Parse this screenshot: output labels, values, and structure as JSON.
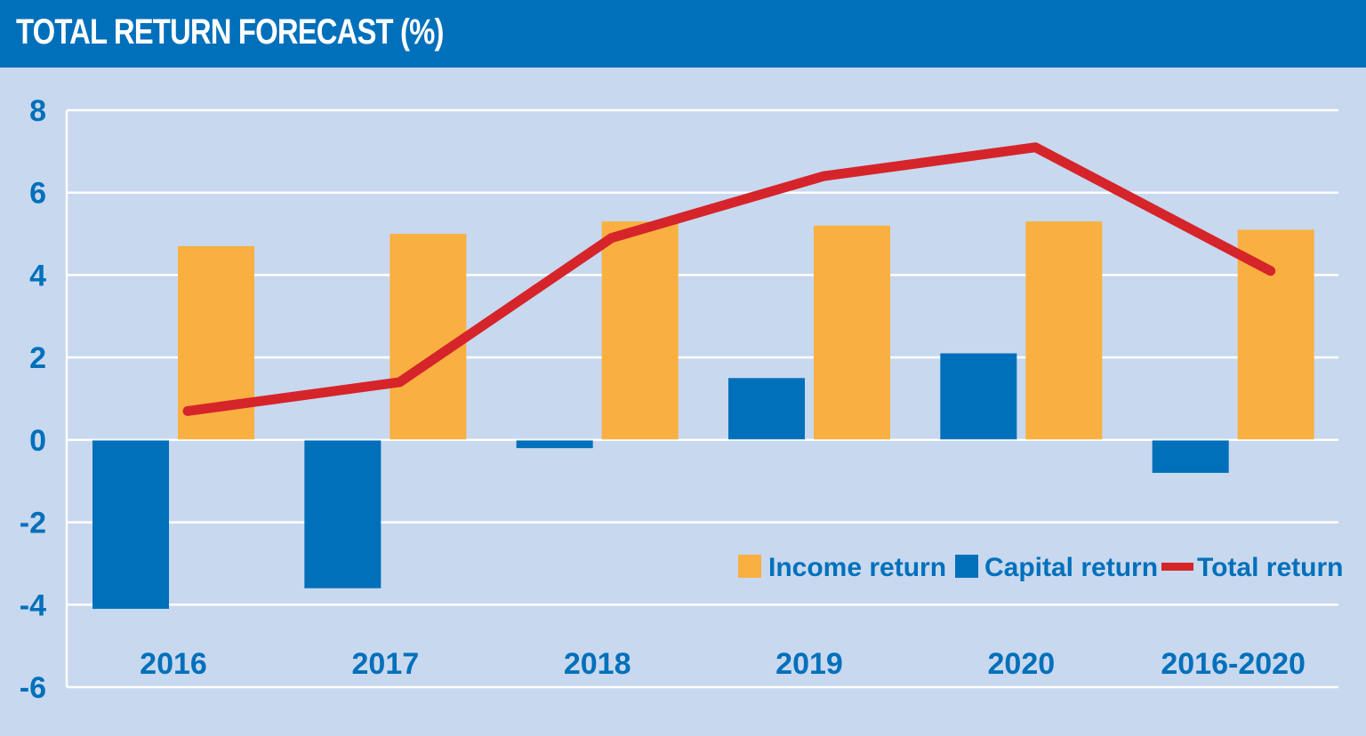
{
  "header": {
    "title": "TOTAL RETURN FORECAST (%)",
    "background": "#0070bb"
  },
  "chart_data": {
    "type": "bar",
    "title": "TOTAL RETURN FORECAST (%)",
    "xlabel": "",
    "ylabel": "",
    "ylim": [
      -6,
      8
    ],
    "yticks": [
      8,
      6,
      4,
      2,
      0,
      -2,
      -4,
      -6
    ],
    "grid": true,
    "legend_position": "bottom-right",
    "categories": [
      "2016",
      "2017",
      "2018",
      "2019",
      "2020",
      "2016-2020"
    ],
    "series": [
      {
        "name": "Capital return",
        "type": "bar",
        "color": "#0070bb",
        "values": [
          -4.1,
          -3.6,
          -0.2,
          1.5,
          2.1,
          -0.8
        ]
      },
      {
        "name": "Income return",
        "type": "bar",
        "color": "#f9b040",
        "values": [
          4.7,
          5.0,
          5.3,
          5.2,
          5.3,
          5.1
        ]
      },
      {
        "name": "Total return",
        "type": "line",
        "color": "#d6242b",
        "values": [
          0.7,
          1.4,
          4.9,
          6.4,
          7.1,
          4.1
        ]
      }
    ],
    "legend": [
      "Income return",
      "Capital return",
      "Total return"
    ],
    "background": "#c8d8ee",
    "gridline_color": "#ffffff",
    "text_color": "#0070bb"
  }
}
